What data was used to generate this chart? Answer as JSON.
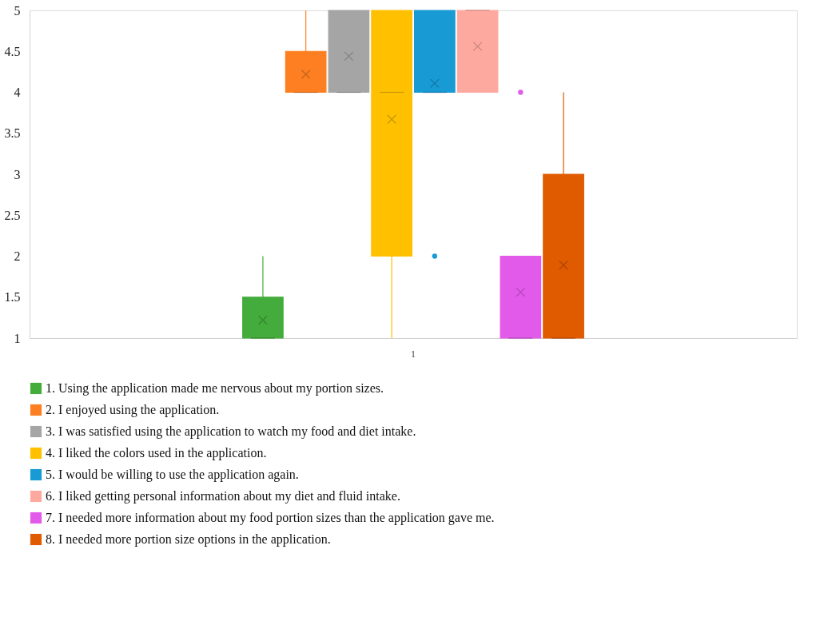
{
  "chart_data": {
    "type": "box",
    "categories": [
      "1"
    ],
    "ylim": [
      1,
      5
    ],
    "yticks": [
      1,
      1.5,
      2,
      2.5,
      3,
      3.5,
      4,
      4.5,
      5
    ],
    "grid": false,
    "legend": "bottom",
    "series": [
      {
        "name": "1. Using the application made me nervous about my portion sizes.",
        "color": "#43ac3c",
        "boxes": [
          {
            "low": 1,
            "q1": 1,
            "median": 1,
            "q3": 1.5,
            "high": 2,
            "mean": 1.22
          }
        ]
      },
      {
        "name": "2. I enjoyed using the application.",
        "color": "#fd7f22",
        "boxes": [
          {
            "low": 4,
            "q1": 4,
            "median": 4,
            "q3": 4.5,
            "high": 5,
            "mean": 4.22
          }
        ]
      },
      {
        "name": "3. I was satisfied using the application to watch my food and diet intake.",
        "color": "#a5a5a5",
        "boxes": [
          {
            "low": 4,
            "q1": 4,
            "median": 4,
            "q3": 5,
            "high": 5,
            "mean": 4.44
          }
        ]
      },
      {
        "name": "4. I liked the colors used in the application.",
        "color": "#ffc000",
        "boxes": [
          {
            "low": 1,
            "q1": 2,
            "median": 4,
            "q3": 5,
            "high": 5,
            "mean": 3.67
          }
        ]
      },
      {
        "name": "5. I would be willing to use the application again.",
        "color": "#189bd5",
        "boxes": [
          {
            "low": 4,
            "q1": 4,
            "median": 4,
            "q3": 5,
            "high": 5,
            "mean": 4.11,
            "outliers": [
              2
            ]
          }
        ]
      },
      {
        "name": "6. I liked getting personal information about my diet and fluid intake.",
        "color": "#fea99f",
        "boxes": [
          {
            "low": 4,
            "q1": 4,
            "median": 5,
            "q3": 5,
            "high": 5,
            "mean": 4.56
          }
        ]
      },
      {
        "name": "7. I needed more information about my food portion sizes than the application gave me.",
        "color": "#e25ae9",
        "boxes": [
          {
            "low": 1,
            "q1": 1,
            "median": 1,
            "q3": 2,
            "high": 2,
            "mean": 1.56,
            "outliers": [
              4
            ]
          }
        ]
      },
      {
        "name": "8. I needed more portion size options in the application.",
        "color": "#e05a00",
        "boxes": [
          {
            "low": 1,
            "q1": 1,
            "median": 1,
            "q3": 3,
            "high": 4,
            "mean": 1.89
          }
        ]
      }
    ]
  }
}
